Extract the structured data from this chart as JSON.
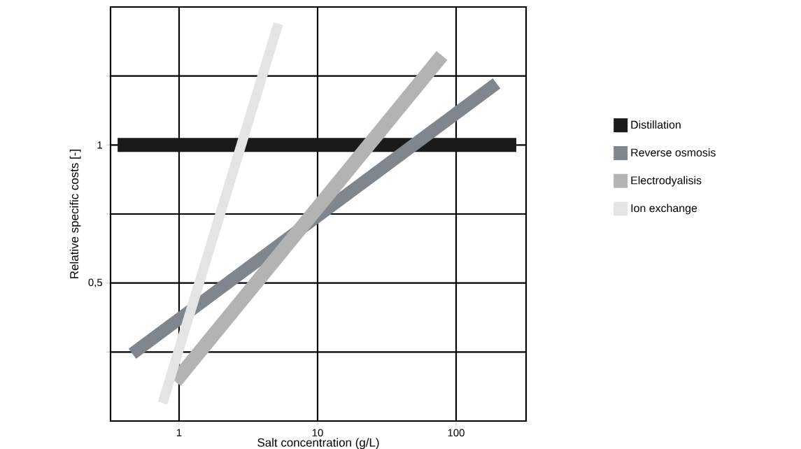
{
  "chart_data": {
    "type": "line",
    "xlabel": "Salt concentration (g/L)",
    "ylabel": "Relative specific costs [-]",
    "log": "x",
    "xlim": [
      0.32,
      320
    ],
    "ylim": [
      0,
      1.5
    ],
    "xticks": [
      1,
      10,
      100
    ],
    "yticks": [
      {
        "value": 0.25,
        "label": null
      },
      {
        "value": 0.5,
        "label": "0,5"
      },
      {
        "value": 0.75,
        "label": null
      },
      1,
      {
        "value": 1.25,
        "label": null
      }
    ],
    "grid": true,
    "legend": "right",
    "marker": "none",
    "line_style": "solid",
    "series": [
      {
        "name": "Distillation",
        "color": "#1a1a1a",
        "x": [
          0.36,
          272
        ],
        "values": [
          1,
          1
        ]
      },
      {
        "name": "Reverse osmosis",
        "color": "#7f868d",
        "x": [
          0.46,
          196
        ],
        "values": [
          0.244,
          1.223
        ]
      },
      {
        "name": "Electrodyalisis",
        "color": "#b3b3b3",
        "x": [
          0.94,
          79
        ],
        "values": [
          0.143,
          1.324
        ]
      },
      {
        "name": "Ion exchange",
        "color": "#e4e4e4",
        "x": [
          0.76,
          5.2
        ],
        "values": [
          0.065,
          1.44
        ]
      }
    ]
  }
}
